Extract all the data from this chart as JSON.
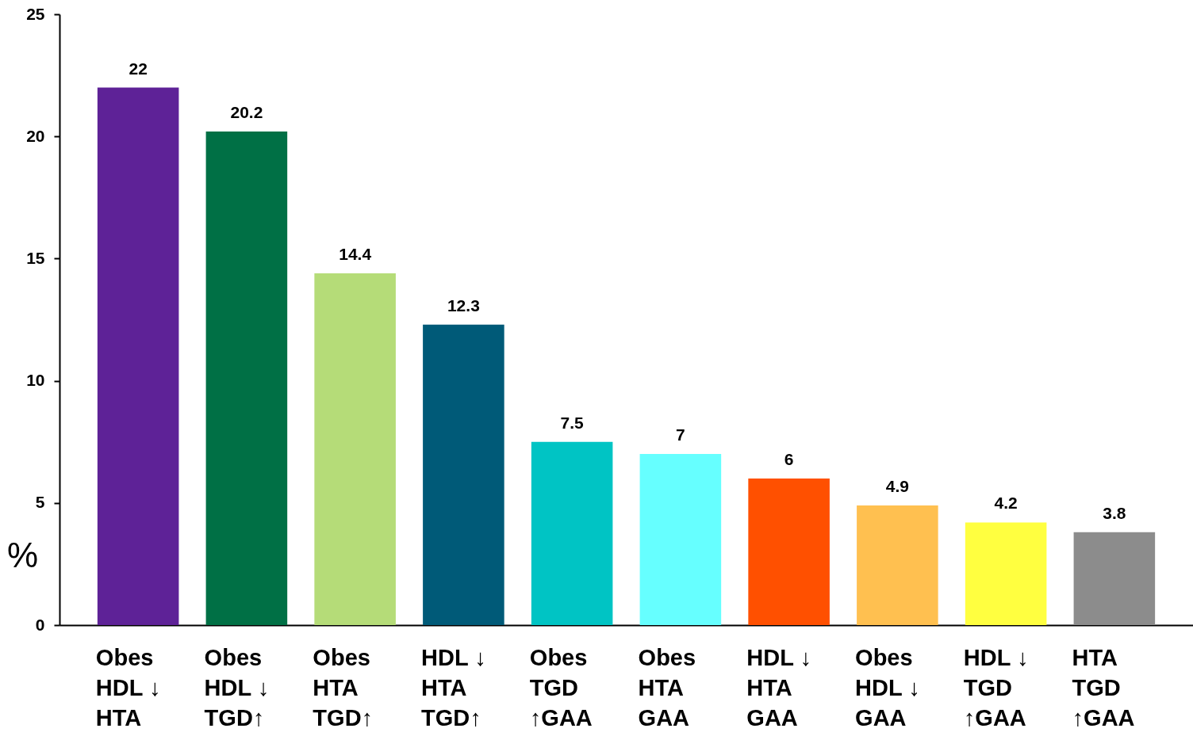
{
  "chart_data": {
    "type": "bar",
    "ylabel": "%",
    "categories": [
      "Obes\nHDL ↓\nHTA",
      "Obes\nHDL ↓\nTGD↑",
      "Obes\nHTA\nTGD↑",
      "HDL ↓\nHTA\nTGD↑",
      "Obes\nTGD\n↑GAA",
      "Obes\nHTA\nGAA",
      "HDL ↓\nHTA\nGAA",
      "Obes\nHDL ↓\nGAA",
      "HDL ↓\nTGD\n↑GAA",
      "HTA\nTGD\n↑GAA"
    ],
    "values": [
      22,
      20.2,
      14.4,
      12.3,
      7.5,
      7,
      6,
      4.9,
      4.2,
      3.8
    ],
    "colors": [
      "#5e2297",
      "#007045",
      "#b5dc78",
      "#005a78",
      "#00c4c4",
      "#66ffff",
      "#ff5000",
      "#ffc050",
      "#ffff40",
      "#8c8c8c"
    ],
    "ylim": [
      0,
      25
    ],
    "yticks": [
      0,
      5,
      10,
      15,
      20,
      25
    ],
    "data_labels": true
  }
}
